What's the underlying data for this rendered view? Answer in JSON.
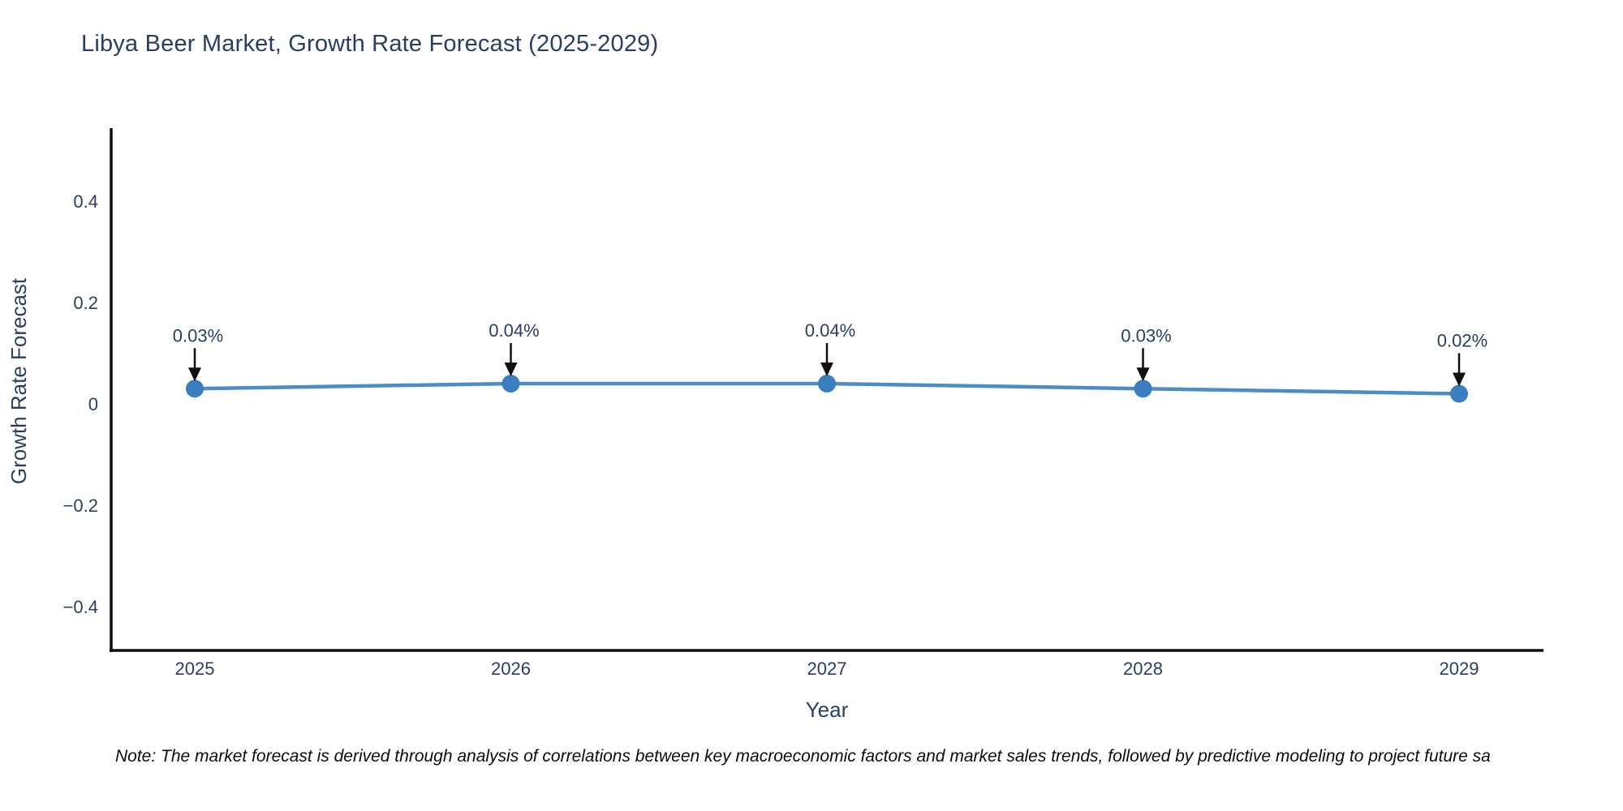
{
  "note": "Note: The market forecast is derived through analysis of correlations between key macroeconomic factors and market sales trends, followed by predictive modeling to project future sa",
  "chart_data": {
    "type": "line",
    "title": "Libya Beer Market, Growth Rate Forecast (2025-2029)",
    "xlabel": "Year",
    "ylabel": "Growth Rate Forecast",
    "categories": [
      "2025",
      "2026",
      "2027",
      "2028",
      "2029"
    ],
    "values": [
      0.03,
      0.04,
      0.04,
      0.03,
      0.02
    ],
    "point_labels": [
      "0.03%",
      "0.04%",
      "0.04%",
      "0.03%",
      "0.02%"
    ],
    "yticks": [
      {
        "value": 0.4,
        "label": "0.4"
      },
      {
        "value": 0.2,
        "label": "0.2"
      },
      {
        "value": 0,
        "label": "0"
      },
      {
        "value": -0.2,
        "label": "−0.2"
      },
      {
        "value": -0.4,
        "label": "−0.4"
      }
    ],
    "ylim": [
      -0.49,
      0.54
    ],
    "grid": false,
    "legend": false,
    "colors": {
      "line": "#4c8cc7",
      "marker": "#3b7ec0",
      "arrow": "#111111",
      "axis_line": "#0d0d0d",
      "text": "#2a3f5f"
    }
  }
}
